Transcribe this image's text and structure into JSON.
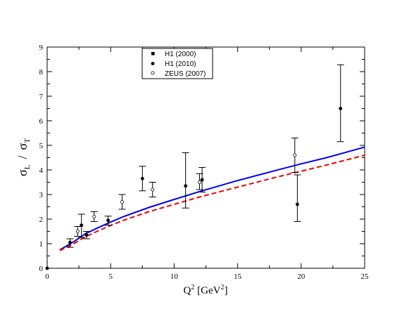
{
  "chart_data": {
    "type": "scatter",
    "xlabel": {
      "main": "Q",
      "sup": "2",
      "unit_open": " [GeV",
      "unit_sup": "2",
      "unit_close": "]"
    },
    "ylabel": {
      "s1": "σ",
      "sub1": "L",
      "slash": "/",
      "s2": "σ",
      "sub2": "T"
    },
    "xlim": [
      0,
      25
    ],
    "ylim": [
      0,
      9
    ],
    "xticks": [
      "0",
      "5",
      "10",
      "15",
      "20",
      "25"
    ],
    "yticks": [
      "0",
      "1",
      "2",
      "3",
      "4",
      "5",
      "6",
      "7",
      "8",
      "9"
    ],
    "legend_position": "top-center",
    "series": [
      {
        "name": "H1 (2000)",
        "marker": "square",
        "points": []
      },
      {
        "name": "H1 (2010)",
        "marker": "filled-circle",
        "points": [
          {
            "x": 1.8,
            "y": 1.05,
            "lo": 0.85,
            "hi": 1.2
          },
          {
            "x": 2.7,
            "y": 1.75,
            "lo": 1.25,
            "hi": 2.2
          },
          {
            "x": 3.1,
            "y": 1.35,
            "lo": 1.2,
            "hi": 1.5
          },
          {
            "x": 4.8,
            "y": 1.95,
            "lo": 1.75,
            "hi": 2.12
          },
          {
            "x": 7.5,
            "y": 3.65,
            "lo": 3.15,
            "hi": 4.15
          },
          {
            "x": 10.9,
            "y": 3.35,
            "lo": 2.45,
            "hi": 4.7
          },
          {
            "x": 12.2,
            "y": 3.6,
            "lo": 3.1,
            "hi": 4.1
          },
          {
            "x": 19.7,
            "y": 2.6,
            "lo": 1.9,
            "hi": 3.8
          },
          {
            "x": 23.1,
            "y": 6.5,
            "lo": 5.15,
            "hi": 8.28
          }
        ]
      },
      {
        "name": "ZEUS (2007)",
        "marker": "open-circle",
        "points": [
          {
            "x": 2.4,
            "y": 1.5,
            "lo": 1.3,
            "hi": 1.7
          },
          {
            "x": 3.7,
            "y": 2.1,
            "lo": 1.9,
            "hi": 2.3
          },
          {
            "x": 5.9,
            "y": 2.7,
            "lo": 2.4,
            "hi": 3.0
          },
          {
            "x": 8.3,
            "y": 3.2,
            "lo": 2.9,
            "hi": 3.5
          },
          {
            "x": 12.0,
            "y": 3.5,
            "lo": 3.2,
            "hi": 3.85
          },
          {
            "x": 19.5,
            "y": 4.6,
            "lo": 3.9,
            "hi": 5.3
          }
        ]
      },
      {
        "name": "",
        "marker": "filled-circle",
        "points": [
          {
            "x": 0.0,
            "y": 0.0
          }
        ]
      }
    ],
    "curves": [
      {
        "style": "solid",
        "color": "#0000ee",
        "x": [
          1,
          2,
          3,
          4,
          5,
          6,
          8,
          10,
          12,
          15,
          18,
          20,
          22,
          25
        ],
        "y": [
          0.75,
          1.05,
          1.4,
          1.65,
          1.88,
          2.1,
          2.47,
          2.8,
          3.12,
          3.57,
          3.98,
          4.25,
          4.5,
          4.93
        ]
      },
      {
        "style": "dashed",
        "color": "#ee0000",
        "x": [
          1,
          2,
          3,
          4,
          5,
          6,
          8,
          10,
          12,
          15,
          18,
          20,
          22,
          25
        ],
        "y": [
          0.72,
          0.97,
          1.28,
          1.52,
          1.74,
          1.95,
          2.3,
          2.6,
          2.9,
          3.3,
          3.7,
          3.95,
          4.2,
          4.6
        ]
      }
    ]
  }
}
